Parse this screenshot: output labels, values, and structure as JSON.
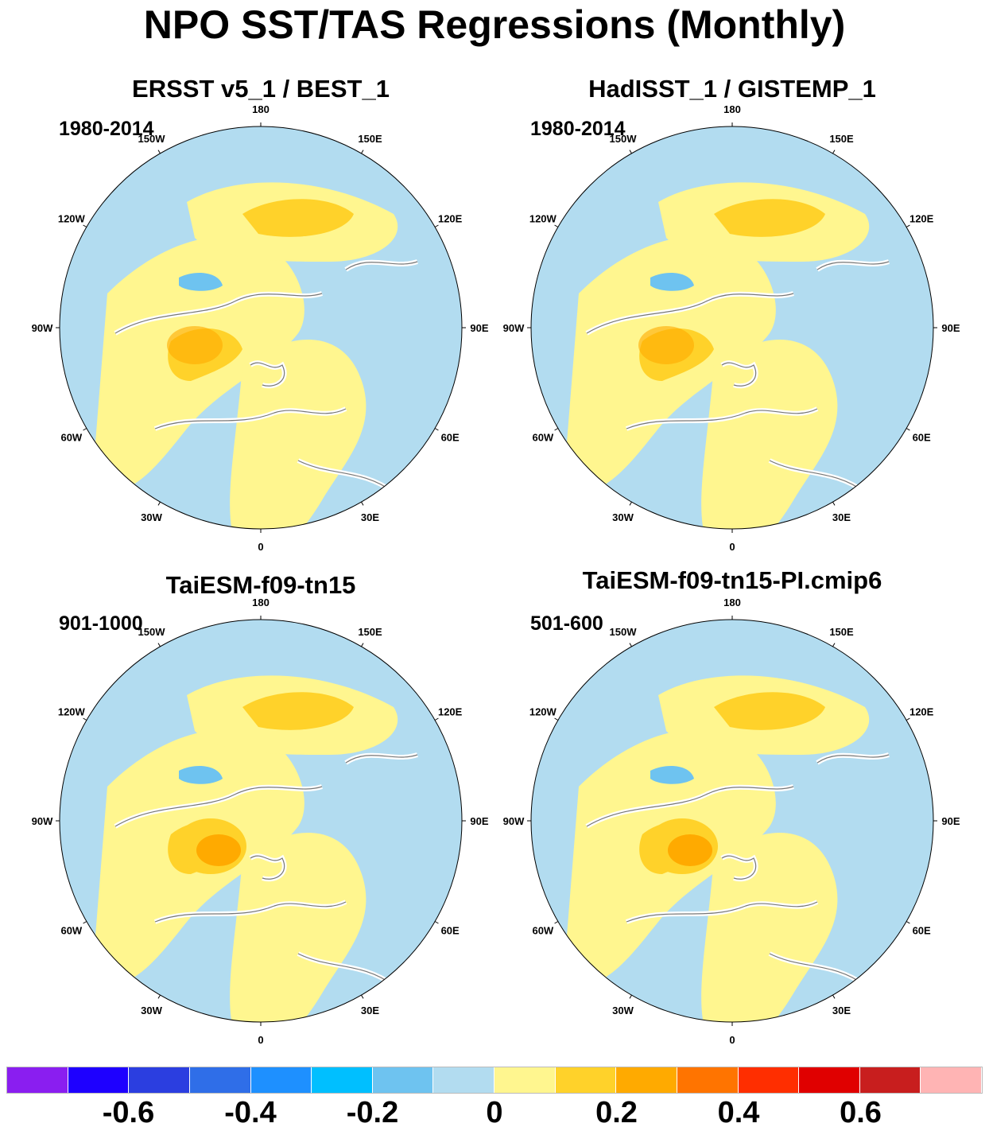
{
  "title": "NPO SST/TAS Regressions (Monthly)",
  "panels": [
    {
      "title": "ERSST v5_1 / BEST_1",
      "period": "1980-2014"
    },
    {
      "title": "HadISST_1 / GISTEMP_1",
      "period": "1980-2014"
    },
    {
      "title": "TaiESM-f09-tn15",
      "period": "901-1000"
    },
    {
      "title": "TaiESM-f09-tn15-PI.cmip6",
      "period": "501-600"
    }
  ],
  "longitude_labels": [
    "180",
    "150E",
    "120E",
    "90E",
    "60E",
    "30E",
    "0",
    "30W",
    "60W",
    "90W",
    "120W",
    "150W"
  ],
  "colorbar": {
    "colors": [
      "#8a1ef0",
      "#1e00ff",
      "#2b3ee0",
      "#2f6ee8",
      "#1e90ff",
      "#00bfff",
      "#6ec3f0",
      "#b2dcf0",
      "#fff68f",
      "#ffd22a",
      "#ffaa00",
      "#ff7400",
      "#ff2e00",
      "#e00000",
      "#c81e1e",
      "#ffb4b4"
    ],
    "tick_labels": [
      "-0.6",
      "-0.4",
      "-0.2",
      "0",
      "0.2",
      "0.4",
      "0.6"
    ]
  },
  "colors": {
    "ocean_neutral_negative": "#b2dcf0",
    "neutral_positive": "#fff68f",
    "moderate_positive": "#ffd22a",
    "strong_positive": "#ffaa00",
    "moderate_negative": "#6ec3f0",
    "coastline": "#777777"
  }
}
